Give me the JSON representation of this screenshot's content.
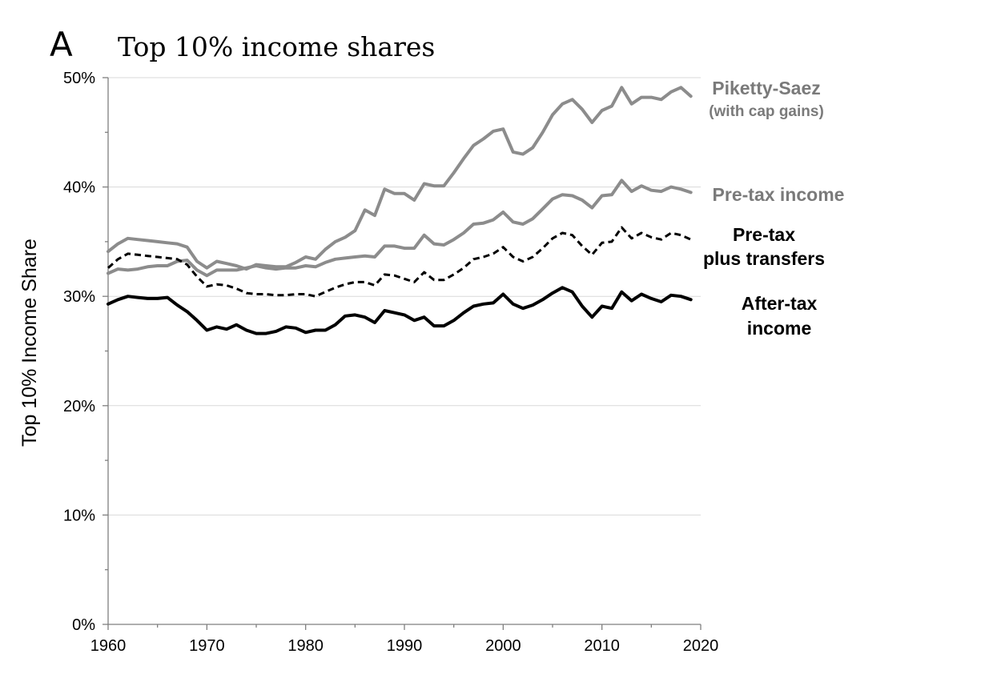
{
  "panel_letter": "A",
  "colors": {
    "gray": "#8c8c8c",
    "gray_text": "#7a7a7a",
    "black": "#000000"
  },
  "chart_data": {
    "type": "line",
    "title": "Top 10% income shares",
    "xlabel": "",
    "ylabel": "Top 10% Income Share",
    "xlim": [
      1960,
      2020
    ],
    "ylim": [
      0,
      50
    ],
    "x_ticks": [
      1960,
      1970,
      1980,
      1990,
      2000,
      2010,
      2020
    ],
    "y_ticks": [
      0,
      10,
      20,
      30,
      40,
      50
    ],
    "y_tick_labels": [
      "0%",
      "10%",
      "20%",
      "30%",
      "40%",
      "50%"
    ],
    "grid": "horizontal",
    "x": [
      1960,
      1961,
      1962,
      1963,
      1964,
      1965,
      1966,
      1967,
      1968,
      1969,
      1970,
      1971,
      1972,
      1973,
      1974,
      1975,
      1976,
      1977,
      1978,
      1979,
      1980,
      1981,
      1982,
      1983,
      1984,
      1985,
      1986,
      1987,
      1988,
      1989,
      1990,
      1991,
      1992,
      1993,
      1994,
      1995,
      1996,
      1997,
      1998,
      1999,
      2000,
      2001,
      2002,
      2003,
      2004,
      2005,
      2006,
      2007,
      2008,
      2009,
      2010,
      2011,
      2012,
      2013,
      2014,
      2015,
      2016,
      2017,
      2018,
      2019
    ],
    "series": [
      {
        "name": "Piketty-Saez",
        "label": "Piketty-Saez",
        "sublabel": "(with cap gains)",
        "style": "solid",
        "color": "#8c8c8c",
        "values": [
          34.1,
          34.8,
          35.3,
          35.2,
          35.1,
          35.0,
          34.9,
          34.8,
          34.5,
          33.2,
          32.6,
          33.2,
          33.0,
          32.8,
          32.5,
          32.9,
          32.8,
          32.7,
          32.7,
          33.1,
          33.6,
          33.4,
          34.3,
          35.0,
          35.4,
          36.0,
          37.9,
          37.4,
          39.8,
          39.4,
          39.4,
          38.8,
          40.3,
          40.1,
          40.1,
          41.3,
          42.6,
          43.8,
          44.4,
          45.1,
          45.3,
          43.2,
          43.0,
          43.6,
          45.0,
          46.6,
          47.6,
          48.0,
          47.1,
          45.9,
          47.0,
          47.4,
          49.1,
          47.6,
          48.2,
          48.2,
          48.0,
          48.7,
          49.1,
          48.3
        ]
      },
      {
        "name": "Pre-tax income",
        "label": "Pre-tax income",
        "style": "solid",
        "color": "#8c8c8c",
        "values": [
          32.1,
          32.5,
          32.4,
          32.5,
          32.7,
          32.8,
          32.8,
          33.2,
          33.3,
          32.4,
          31.9,
          32.4,
          32.4,
          32.4,
          32.6,
          32.8,
          32.6,
          32.5,
          32.6,
          32.6,
          32.8,
          32.7,
          33.1,
          33.4,
          33.5,
          33.6,
          33.7,
          33.6,
          34.6,
          34.6,
          34.4,
          34.4,
          35.6,
          34.8,
          34.7,
          35.2,
          35.8,
          36.6,
          36.7,
          37.0,
          37.7,
          36.8,
          36.6,
          37.1,
          38.0,
          38.9,
          39.3,
          39.2,
          38.8,
          38.1,
          39.2,
          39.3,
          40.6,
          39.6,
          40.1,
          39.7,
          39.6,
          40.0,
          39.8,
          39.5
        ]
      },
      {
        "name": "Pre-tax plus transfers",
        "label": "Pre-tax",
        "sublabel": "plus transfers",
        "style": "dashed",
        "color": "#000000",
        "values": [
          32.6,
          33.4,
          33.9,
          33.8,
          33.7,
          33.6,
          33.5,
          33.4,
          32.9,
          31.8,
          30.9,
          31.1,
          31.0,
          30.7,
          30.3,
          30.2,
          30.2,
          30.1,
          30.1,
          30.2,
          30.2,
          30.0,
          30.4,
          30.8,
          31.1,
          31.3,
          31.3,
          31.0,
          32.0,
          31.9,
          31.6,
          31.3,
          32.2,
          31.5,
          31.5,
          32.0,
          32.6,
          33.4,
          33.6,
          33.9,
          34.5,
          33.6,
          33.2,
          33.6,
          34.4,
          35.3,
          35.8,
          35.6,
          34.6,
          33.8,
          34.9,
          35.0,
          36.3,
          35.3,
          35.8,
          35.4,
          35.2,
          35.8,
          35.6,
          35.2
        ]
      },
      {
        "name": "After-tax income",
        "label": "After-tax",
        "sublabel": "income",
        "style": "solid",
        "color": "#000000",
        "values": [
          29.3,
          29.7,
          30.0,
          29.9,
          29.8,
          29.8,
          29.9,
          29.2,
          28.6,
          27.8,
          26.9,
          27.2,
          27.0,
          27.4,
          26.9,
          26.6,
          26.6,
          26.8,
          27.2,
          27.1,
          26.7,
          26.9,
          26.9,
          27.4,
          28.2,
          28.3,
          28.1,
          27.6,
          28.7,
          28.5,
          28.3,
          27.8,
          28.1,
          27.3,
          27.3,
          27.8,
          28.5,
          29.1,
          29.3,
          29.4,
          30.2,
          29.3,
          28.9,
          29.2,
          29.7,
          30.3,
          30.8,
          30.4,
          29.1,
          28.1,
          29.1,
          28.9,
          30.4,
          29.6,
          30.2,
          29.8,
          29.5,
          30.1,
          30.0,
          29.7
        ]
      }
    ]
  }
}
